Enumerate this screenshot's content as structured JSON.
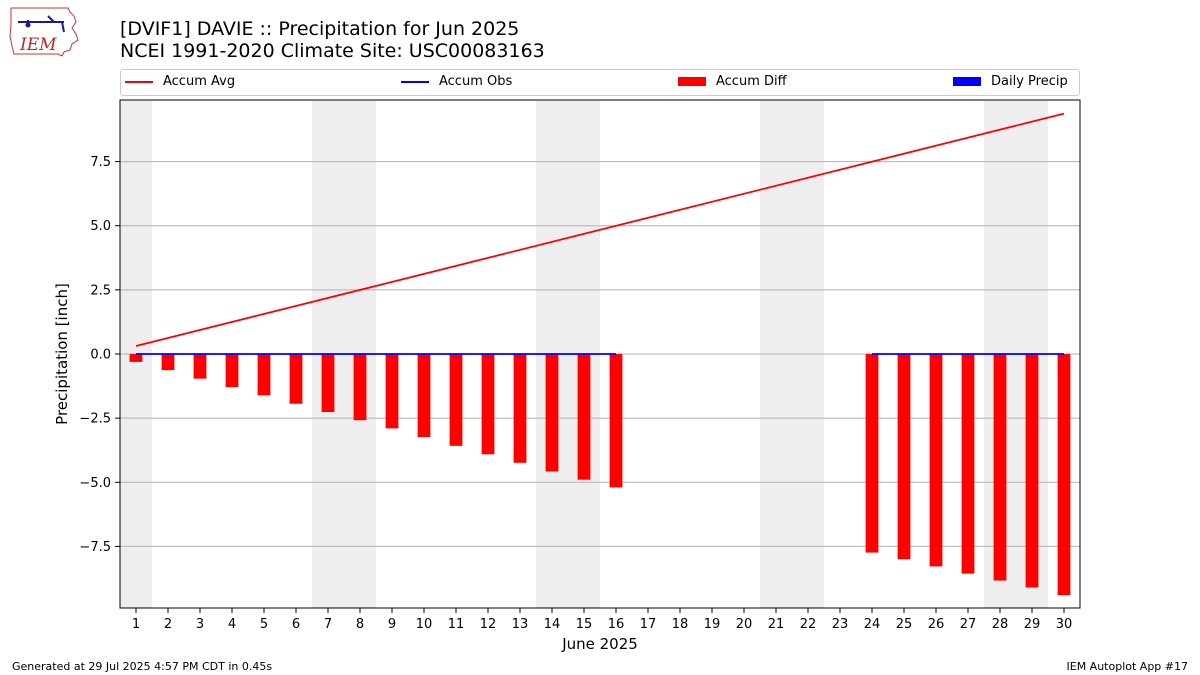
{
  "header": {
    "title_line1": "[DVIF1] DAVIE :: Precipitation for Jun 2025",
    "title_line2": "NCEI 1991-2020 Climate Site: USC00083163",
    "logo_text": "IEM"
  },
  "legend": {
    "items": [
      {
        "label": "Accum Avg",
        "kind": "line",
        "color": "#ff0000"
      },
      {
        "label": "Accum Obs",
        "kind": "line",
        "color": "#0000ff"
      },
      {
        "label": "Accum Diff",
        "kind": "patch",
        "color": "#ff0000"
      },
      {
        "label": "Daily Precip",
        "kind": "patch",
        "color": "#0000ff"
      }
    ]
  },
  "footer": {
    "left": "Generated at 29 Jul 2025 4:57 PM CDT in 0.45s",
    "right": "IEM Autoplot App #17"
  },
  "chart_data": {
    "type": "bar",
    "xlabel": "June 2025",
    "ylabel": "Precipitation [inch]",
    "xlim": [
      0.5,
      30.5
    ],
    "ylim": [
      -9.9,
      9.9
    ],
    "x": [
      1,
      2,
      3,
      4,
      5,
      6,
      7,
      8,
      9,
      10,
      11,
      12,
      13,
      14,
      15,
      16,
      17,
      18,
      19,
      20,
      21,
      22,
      23,
      24,
      25,
      26,
      27,
      28,
      29,
      30
    ],
    "x_tick_labels": [
      "1",
      "2",
      "3",
      "4",
      "5",
      "6",
      "7",
      "8",
      "9",
      "10",
      "11",
      "12",
      "13",
      "14",
      "15",
      "16",
      "17",
      "18",
      "19",
      "20",
      "21",
      "22",
      "23",
      "24",
      "25",
      "26",
      "27",
      "28",
      "29",
      "30"
    ],
    "y_ticks": [
      -7.5,
      -5.0,
      -2.5,
      0.0,
      2.5,
      5.0,
      7.5
    ],
    "y_tick_labels": [
      "−7.5",
      "−5.0",
      "−2.5",
      "0.0",
      "2.5",
      "5.0",
      "7.5"
    ],
    "grid": "y",
    "legend_position": "top",
    "weekend_days": [
      1,
      7,
      8,
      14,
      15,
      21,
      22,
      28,
      29
    ],
    "series": [
      {
        "name": "Accum Avg",
        "kind": "line",
        "color": "#ff0000",
        "x": [
          1,
          30
        ],
        "values": [
          0.31,
          9.37
        ]
      },
      {
        "name": "Accum Obs",
        "kind": "line",
        "color": "#0000ff",
        "segments": [
          {
            "x": [
              1,
              16
            ],
            "values": [
              0,
              0
            ]
          },
          {
            "x": [
              24,
              30
            ],
            "values": [
              0,
              0
            ]
          }
        ]
      },
      {
        "name": "Accum Diff",
        "kind": "bar",
        "color": "#ff0000",
        "x": [
          1,
          2,
          3,
          4,
          5,
          6,
          7,
          8,
          9,
          10,
          11,
          12,
          13,
          14,
          15,
          16,
          24,
          25,
          26,
          27,
          28,
          29,
          30
        ],
        "values": [
          -0.31,
          -0.63,
          -0.96,
          -1.29,
          -1.61,
          -1.94,
          -2.26,
          -2.58,
          -2.9,
          -3.24,
          -3.58,
          -3.91,
          -4.24,
          -4.58,
          -4.9,
          -5.2,
          -7.74,
          -8.0,
          -8.28,
          -8.56,
          -8.83,
          -9.1,
          -9.4
        ]
      },
      {
        "name": "Daily Precip",
        "kind": "bar",
        "color": "#0000ff",
        "x": [],
        "values": []
      }
    ]
  }
}
